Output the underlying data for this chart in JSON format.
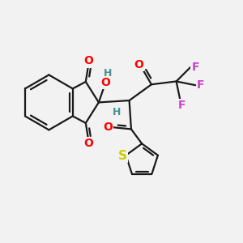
{
  "bg_color": "#f2f2f2",
  "bond_color": "#1a1a1a",
  "bond_width": 1.6,
  "atom_colors": {
    "O": "#ff0000",
    "F": "#cc44cc",
    "S": "#cccc00",
    "H_teal": "#4a9090",
    "C": "#1a1a1a"
  },
  "font_size": 10,
  "figsize": [
    3.0,
    3.0
  ],
  "dpi": 100,
  "xlim": [
    -2.8,
    3.5
  ],
  "ylim": [
    -2.8,
    1.8
  ]
}
